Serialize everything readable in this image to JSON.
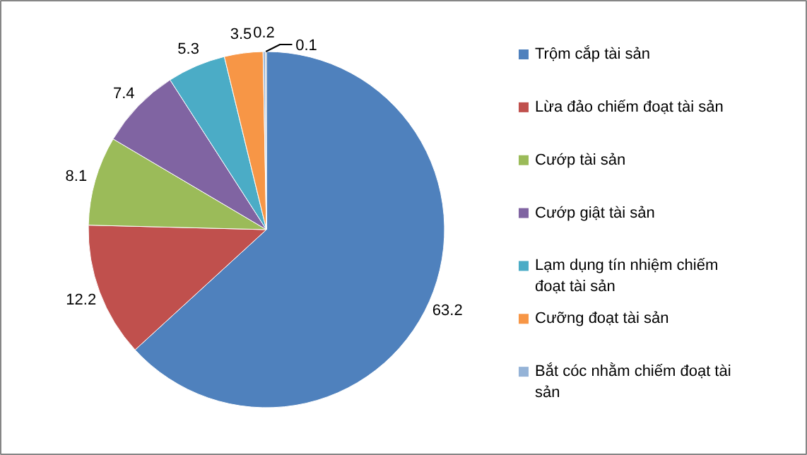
{
  "chart_data": {
    "type": "pie",
    "categories": [
      "Trộm cắp tài sản",
      "Lừa đảo chiếm đoạt tài sản",
      "Cướp tài sản",
      "Cướp giật tài sản",
      "Lạm dụng tín nhiệm chiếm đoạt tài sản",
      "Cưỡng đoạt tài sản",
      "Bắt cóc nhằm chiếm đoạt tài sản",
      null
    ],
    "values": [
      63.2,
      12.2,
      8.1,
      7.4,
      5.3,
      3.5,
      0.2,
      0.1
    ],
    "colors": [
      "#4f81bd",
      "#c0504d",
      "#9bbb59",
      "#8064a2",
      "#4bacc6",
      "#f79646",
      "#95b3d7",
      "#7f7f7f"
    ],
    "data_labels": true,
    "legend": "right"
  }
}
